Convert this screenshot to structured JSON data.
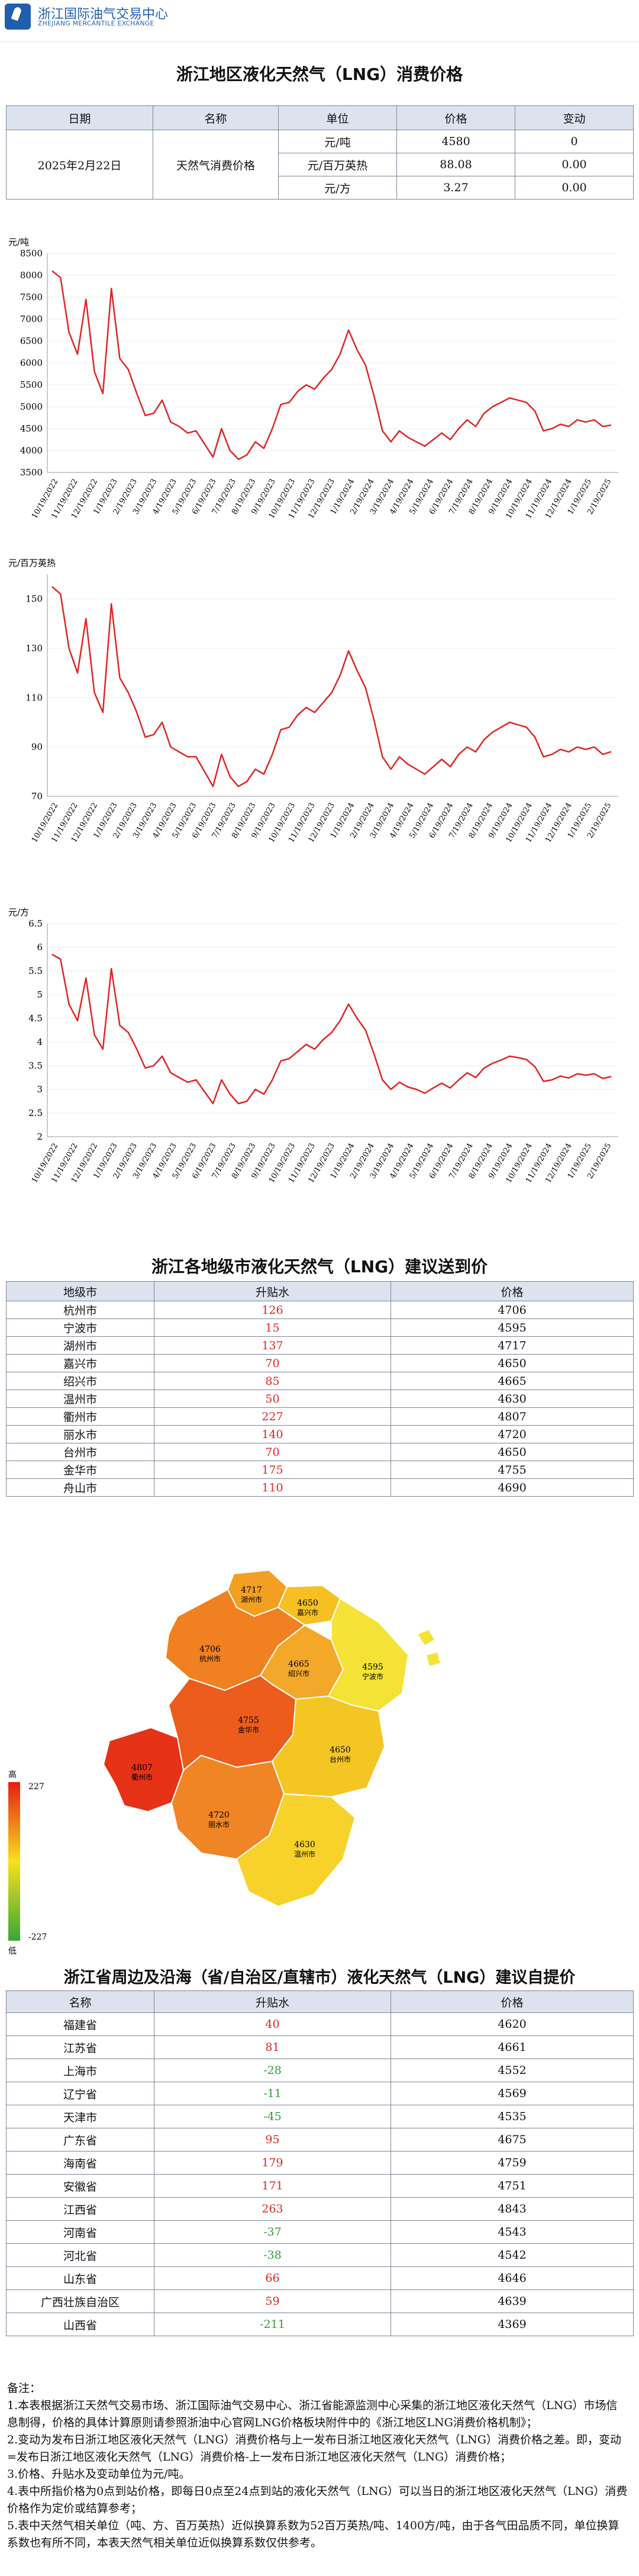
{
  "header": {
    "logo_cn": "浙江国际油气交易中心",
    "logo_en": "ZHEJIANG MERCANTILE EXCHANGE"
  },
  "main_title": "浙江地区液化天然气（LNG）消费价格",
  "price_table": {
    "headers": [
      "日期",
      "名称",
      "单位",
      "价格",
      "变动"
    ],
    "date": "2025年2月22日",
    "name": "天然气消费价格",
    "rows": [
      {
        "unit": "元/吨",
        "price": "4580",
        "change": "0"
      },
      {
        "unit": "元/百万英热",
        "price": "88.08",
        "change": "0.00"
      },
      {
        "unit": "元/方",
        "price": "3.27",
        "change": "0.00"
      }
    ]
  },
  "chart_data": [
    {
      "type": "line",
      "ylabel": "元/吨",
      "ylim": [
        3500,
        8500
      ],
      "yticks": [
        3500,
        4000,
        4500,
        5000,
        5500,
        6000,
        6500,
        7000,
        7500,
        8000,
        8500
      ],
      "xticks": [
        "10/19/2022",
        "11/19/2022",
        "12/19/2022",
        "1/19/2023",
        "2/19/2023",
        "3/19/2023",
        "4/19/2023",
        "5/19/2023",
        "6/19/2023",
        "7/19/2023",
        "8/19/2023",
        "9/19/2023",
        "10/19/2023",
        "11/19/2023",
        "12/19/2023",
        "1/19/2024",
        "2/19/2024",
        "3/19/2024",
        "4/19/2024",
        "5/19/2024",
        "6/19/2024",
        "7/19/2024",
        "8/19/2024",
        "9/19/2024",
        "10/19/2024",
        "11/19/2024",
        "12/19/2024",
        "1/19/2025",
        "2/19/2025"
      ],
      "color": "#e02424",
      "series": [
        {
          "values": [
            8100,
            7950,
            6700,
            6200,
            7450,
            5800,
            5300,
            7700,
            6100,
            5850,
            5300,
            4800,
            4850,
            5150,
            4650,
            4550,
            4400,
            4450,
            4150,
            3850,
            4500,
            4000,
            3800,
            3900,
            4200,
            4050,
            4500,
            5050,
            5100,
            5350,
            5500,
            5400,
            5650,
            5850,
            6200,
            6750,
            6300,
            5950,
            5250,
            4450,
            4200,
            4450,
            4300,
            4200,
            4100,
            4250,
            4400,
            4250,
            4500,
            4700,
            4550,
            4850,
            5000,
            5100,
            5200,
            5150,
            5100,
            4900,
            4450,
            4500,
            4600,
            4550,
            4700,
            4650,
            4700,
            4550,
            4580
          ]
        }
      ]
    },
    {
      "type": "line",
      "ylabel": "元/百万英热",
      "ylim": [
        70,
        160
      ],
      "yticks": [
        70,
        90,
        110,
        130,
        150
      ],
      "xticks": [
        "10/19/2022",
        "11/19/2022",
        "12/19/2022",
        "1/19/2023",
        "2/19/2023",
        "3/19/2023",
        "4/19/2023",
        "5/19/2023",
        "6/19/2023",
        "7/19/2023",
        "8/19/2023",
        "9/19/2023",
        "10/19/2023",
        "11/19/2023",
        "12/19/2023",
        "1/19/2024",
        "2/19/2024",
        "3/19/2024",
        "4/19/2024",
        "5/19/2024",
        "6/19/2024",
        "7/19/2024",
        "8/19/2024",
        "9/19/2024",
        "10/19/2024",
        "11/19/2024",
        "12/19/2024",
        "1/19/2025",
        "2/19/2025"
      ],
      "color": "#e02424",
      "series": [
        {
          "values": [
            155,
            152,
            130,
            120,
            142,
            112,
            104,
            148,
            118,
            112,
            104,
            94,
            95,
            100,
            90,
            88,
            86,
            86,
            80,
            74,
            87,
            78,
            74,
            76,
            81,
            79,
            87,
            97,
            98,
            103,
            106,
            104,
            108,
            112,
            119,
            129,
            121,
            114,
            101,
            86,
            81,
            86,
            83,
            81,
            79,
            82,
            85,
            82,
            87,
            90,
            88,
            93,
            96,
            98,
            100,
            99,
            98,
            94,
            86,
            87,
            89,
            88,
            90,
            89,
            90,
            87,
            88.08
          ]
        }
      ]
    },
    {
      "type": "line",
      "ylabel": "元/方",
      "ylim": [
        2,
        6.5
      ],
      "yticks": [
        2,
        2.5,
        3,
        3.5,
        4,
        4.5,
        5,
        5.5,
        6,
        6.5
      ],
      "xticks": [
        "10/19/2022",
        "11/19/2022",
        "12/19/2022",
        "1/19/2023",
        "2/19/2023",
        "3/19/2023",
        "4/19/2023",
        "5/19/2023",
        "6/19/2023",
        "7/19/2023",
        "8/19/2023",
        "9/19/2023",
        "10/19/2023",
        "11/19/2023",
        "12/19/2023",
        "1/19/2024",
        "2/19/2024",
        "3/19/2024",
        "4/19/2024",
        "5/19/2024",
        "6/19/2024",
        "7/19/2024",
        "8/19/2024",
        "9/19/2024",
        "10/19/2024",
        "11/19/2024",
        "12/19/2024",
        "1/19/2025",
        "2/19/2025"
      ],
      "color": "#e02424",
      "series": [
        {
          "values": [
            5.85,
            5.75,
            4.8,
            4.45,
            5.35,
            4.15,
            3.85,
            5.55,
            4.35,
            4.2,
            3.85,
            3.45,
            3.5,
            3.7,
            3.35,
            3.25,
            3.15,
            3.2,
            2.95,
            2.7,
            3.2,
            2.9,
            2.7,
            2.75,
            3.0,
            2.9,
            3.2,
            3.6,
            3.65,
            3.8,
            3.95,
            3.85,
            4.05,
            4.2,
            4.45,
            4.8,
            4.5,
            4.25,
            3.75,
            3.2,
            3.0,
            3.15,
            3.05,
            3.0,
            2.92,
            3.03,
            3.13,
            3.03,
            3.2,
            3.35,
            3.25,
            3.45,
            3.55,
            3.62,
            3.7,
            3.67,
            3.63,
            3.48,
            3.17,
            3.2,
            3.28,
            3.24,
            3.33,
            3.3,
            3.33,
            3.23,
            3.27
          ]
        }
      ]
    }
  ],
  "city_section": {
    "title": "浙江各地级市液化天然气（LNG）建议送到价",
    "headers": [
      "地级市",
      "升贴水",
      "价格"
    ],
    "rows": [
      {
        "name": "杭州市",
        "premium": "126",
        "price": "4706",
        "premium_color": "#e02424"
      },
      {
        "name": "宁波市",
        "premium": "15",
        "price": "4595",
        "premium_color": "#e02424"
      },
      {
        "name": "湖州市",
        "premium": "137",
        "price": "4717",
        "premium_color": "#e02424"
      },
      {
        "name": "嘉兴市",
        "premium": "70",
        "price": "4650",
        "premium_color": "#e02424"
      },
      {
        "name": "绍兴市",
        "premium": "85",
        "price": "4665",
        "premium_color": "#e02424"
      },
      {
        "name": "温州市",
        "premium": "50",
        "price": "4630",
        "premium_color": "#e02424"
      },
      {
        "name": "衢州市",
        "premium": "227",
        "price": "4807",
        "premium_color": "#e02424"
      },
      {
        "name": "丽水市",
        "premium": "140",
        "price": "4720",
        "premium_color": "#e02424"
      },
      {
        "name": "台州市",
        "premium": "70",
        "price": "4650",
        "premium_color": "#e02424"
      },
      {
        "name": "金华市",
        "premium": "175",
        "price": "4755",
        "premium_color": "#e02424"
      },
      {
        "name": "舟山市",
        "premium": "110",
        "price": "4690",
        "premium_color": "#e02424"
      }
    ]
  },
  "map": {
    "legend_high_label": "高",
    "legend_low_label": "低",
    "legend_max": "227",
    "legend_min": "-227",
    "labels": [
      {
        "price": "4717",
        "city": "湖州市"
      },
      {
        "price": "4650",
        "city": "嘉兴市"
      },
      {
        "price": "4706",
        "city": "杭州市"
      },
      {
        "price": "4665",
        "city": "绍兴市"
      },
      {
        "price": "4595",
        "city": "宁波市"
      },
      {
        "price": "4807",
        "city": "衢州市"
      },
      {
        "price": "4755",
        "city": "金华市"
      },
      {
        "price": "4650",
        "city": "台州市"
      },
      {
        "price": "4720",
        "city": "丽水市"
      },
      {
        "price": "4630",
        "city": "温州市"
      }
    ]
  },
  "province_section": {
    "title": "浙江省周边及沿海（省/自治区/直辖市）液化天然气（LNG）建议自提价",
    "headers": [
      "名称",
      "升贴水",
      "价格"
    ],
    "rows": [
      {
        "name": "福建省",
        "premium": "40",
        "price": "4620",
        "premium_color": "#e02424"
      },
      {
        "name": "江苏省",
        "premium": "81",
        "price": "4661",
        "premium_color": "#e02424"
      },
      {
        "name": "上海市",
        "premium": "-28",
        "price": "4552",
        "premium_color": "#2f9e3a"
      },
      {
        "name": "辽宁省",
        "premium": "-11",
        "price": "4569",
        "premium_color": "#2f9e3a"
      },
      {
        "name": "天津市",
        "premium": "-45",
        "price": "4535",
        "premium_color": "#2f9e3a"
      },
      {
        "name": "广东省",
        "premium": "95",
        "price": "4675",
        "premium_color": "#e02424"
      },
      {
        "name": "海南省",
        "premium": "179",
        "price": "4759",
        "premium_color": "#e02424"
      },
      {
        "name": "安徽省",
        "premium": "171",
        "price": "4751",
        "premium_color": "#e02424"
      },
      {
        "name": "江西省",
        "premium": "263",
        "price": "4843",
        "premium_color": "#e02424"
      },
      {
        "name": "河南省",
        "premium": "-37",
        "price": "4543",
        "premium_color": "#2f9e3a"
      },
      {
        "name": "河北省",
        "premium": "-38",
        "price": "4542",
        "premium_color": "#2f9e3a"
      },
      {
        "name": "山东省",
        "premium": "66",
        "price": "4646",
        "premium_color": "#e02424"
      },
      {
        "name": "广西壮族自治区",
        "premium": "59",
        "price": "4639",
        "premium_color": "#e02424"
      },
      {
        "name": "山西省",
        "premium": "-211",
        "price": "4369",
        "premium_color": "#2f9e3a"
      }
    ]
  },
  "notes": {
    "heading": "备注：",
    "lines": [
      "1.本表根据浙江天然气交易市场、浙江国际油气交易中心、浙江省能源监测中心采集的浙江地区液化天然气（LNG）市场信息制得，价格的具体计算原则请参照浙油中心官网LNG价格板块附件中的《浙江地区LNG消费价格机制》；",
      "2.变动为发布日浙江地区液化天然气（LNG）消费价格与上一发布日浙江地区液化天然气（LNG）消费价格之差。即，变动=发布日浙江地区液化天然气（LNG）消费价格-上一发布日浙江地区液化天然气（LNG）消费价格；",
      "3.价格、升贴水及变动单位为元/吨。",
      "4.表中所指价格为0点到站价格，即每日0点至24点到站的液化天然气（LNG）可以当日的浙江地区液化天然气（LNG）消费价格作为定价或结算参考；",
      "5.表中天然气相关单位（吨、方、百万英热）近似换算系数为52百万英热/吨、1400方/吨，由于各气田品质不同，单位换算系数也有所不同，本表天然气相关单位近似换算系数仅供参考。"
    ]
  }
}
